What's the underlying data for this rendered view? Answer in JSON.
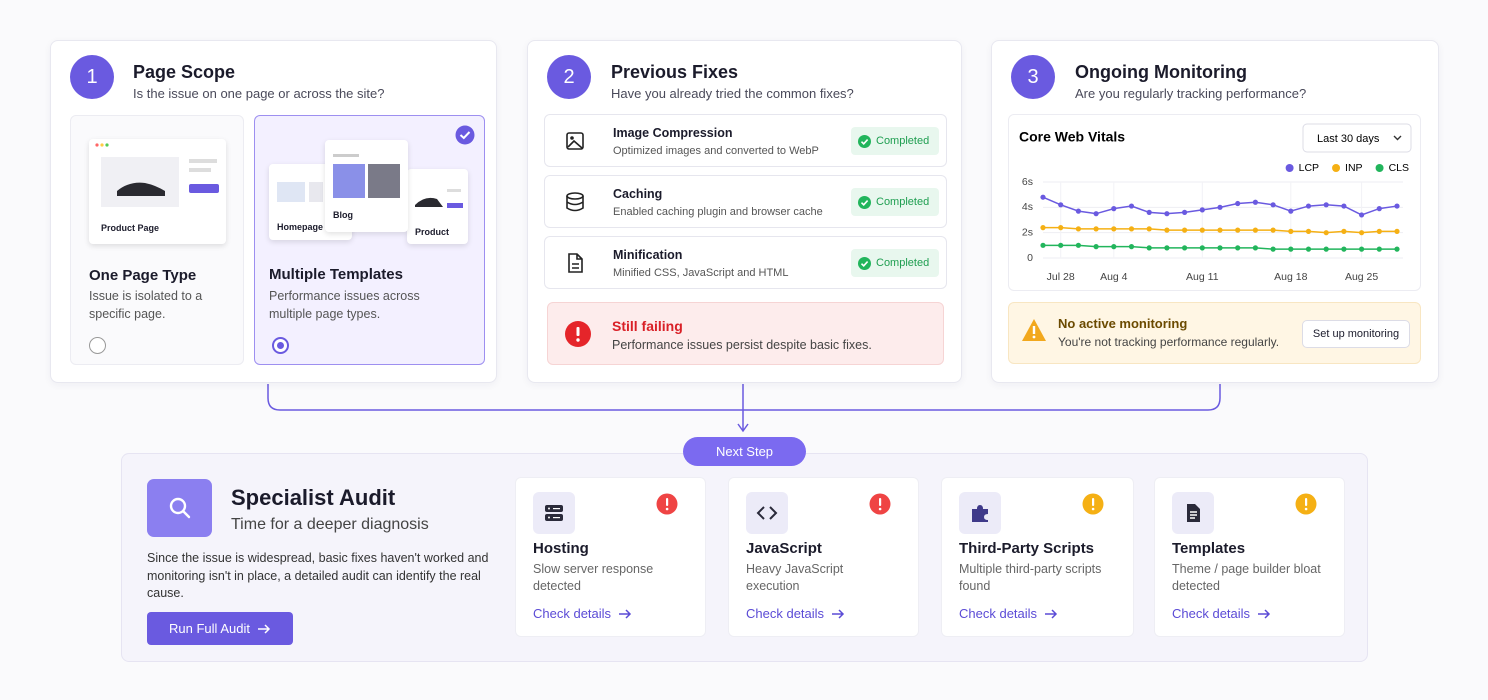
{
  "steps": [
    {
      "number": "1",
      "title": "Page Scope",
      "question": "Is the issue on one page or across the site?",
      "options": [
        {
          "preview_labels": [
            "Product Page"
          ],
          "title": "One Page Type",
          "description": "Issue is isolated to a specific page.",
          "selected": false
        },
        {
          "preview_labels": [
            "Homepage",
            "Blog",
            "Product"
          ],
          "title": "Multiple Templates",
          "description": "Performance issues across multiple page types.",
          "selected": true
        }
      ]
    },
    {
      "number": "2",
      "title": "Previous Fixes",
      "question": "Have you already tried the common fixes?",
      "fixes": [
        {
          "title": "Image Compression",
          "description": "Optimized images and converted to WebP",
          "status": "Completed"
        },
        {
          "title": "Caching",
          "description": "Enabled caching plugin and browser cache",
          "status": "Completed"
        },
        {
          "title": "Minification",
          "description": "Minified CSS, JavaScript and HTML",
          "status": "Completed"
        }
      ],
      "alert": {
        "title": "Still failing",
        "message": "Performance issues persist despite basic fixes."
      }
    },
    {
      "number": "3",
      "title": "Ongoing Monitoring",
      "question": "Are you regularly tracking performance?",
      "alert": {
        "title": "No active monitoring",
        "message": "You're not tracking performance regularly.",
        "action": "Set up monitoring"
      }
    }
  ],
  "chart_data": {
    "type": "line",
    "title": "Core Web Vitals",
    "range_selector": "Last 30 days",
    "categories": [
      null,
      "Jul 28",
      null,
      null,
      "Aug 4",
      null,
      null,
      null,
      null,
      "Aug 11",
      null,
      null,
      null,
      null,
      "Aug 18",
      null,
      null,
      null,
      "Aug 25",
      null,
      null
    ],
    "series": [
      {
        "name": "LCP",
        "color": "#6a5ae0",
        "values": [
          4.8,
          4.2,
          3.7,
          3.5,
          3.9,
          4.1,
          3.6,
          3.5,
          3.6,
          3.8,
          4.0,
          4.3,
          4.4,
          4.2,
          3.7,
          4.1,
          4.2,
          4.1,
          3.4,
          3.9,
          4.1
        ]
      },
      {
        "name": "INP",
        "color": "#f5b014",
        "values": [
          2.4,
          2.4,
          2.3,
          2.3,
          2.3,
          2.3,
          2.3,
          2.2,
          2.2,
          2.2,
          2.2,
          2.2,
          2.2,
          2.2,
          2.1,
          2.1,
          2.0,
          2.1,
          2.0,
          2.1,
          2.1
        ]
      },
      {
        "name": "CLS",
        "color": "#22b55c",
        "values": [
          1.0,
          1.0,
          1.0,
          0.9,
          0.9,
          0.9,
          0.8,
          0.8,
          0.8,
          0.8,
          0.8,
          0.8,
          0.8,
          0.7,
          0.7,
          0.7,
          0.7,
          0.7,
          0.7,
          0.7,
          0.7
        ]
      }
    ],
    "ylim": [
      0,
      6
    ],
    "yticks": [
      {
        "value": 0,
        "label": "0"
      },
      {
        "value": 2,
        "label": "2s"
      },
      {
        "value": 4,
        "label": "4s"
      },
      {
        "value": 6,
        "label": "6s"
      }
    ],
    "grid": true,
    "legend": "top-right"
  },
  "next_step": "Next Step",
  "audit": {
    "title": "Specialist Audit",
    "subtitle": "Time for a deeper diagnosis",
    "description": "Since the issue is widespread, basic fixes haven't worked and monitoring isn't in place, a detailed audit can identify the real cause.",
    "action": "Run Full Audit",
    "areas": [
      {
        "title": "Hosting",
        "description": "Slow server response detected",
        "link": "Check details",
        "color": "#ef4444"
      },
      {
        "title": "JavaScript",
        "description": "Heavy JavaScript execution",
        "link": "Check details",
        "color": "#ef4444"
      },
      {
        "title": "Third-Party Scripts",
        "description": "Multiple third-party scripts found",
        "link": "Check details",
        "color": "#f5b014"
      },
      {
        "title": "Templates",
        "description": "Theme / page builder bloat detected",
        "link": "Check details",
        "color": "#f5b014"
      }
    ]
  }
}
